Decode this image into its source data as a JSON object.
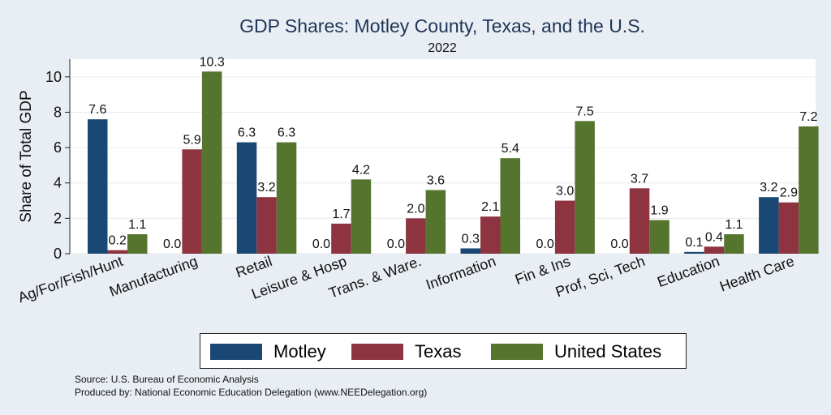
{
  "title": "GDP Shares: Motley County, Texas, and the U.S.",
  "subtitle": "2022",
  "source_line1": "Source: U.S. Bureau of Economic Analysis",
  "source_line2": "Produced by: National Economic Education Delegation (www.NEEDelegation.org)",
  "chart_data": {
    "type": "bar",
    "ylabel": "Share of Total GDP",
    "xlabel": "",
    "ylim": [
      0,
      11
    ],
    "yticks": [
      0,
      2,
      4,
      6,
      8,
      10
    ],
    "grid": true,
    "legend_position": "bottom",
    "categories": [
      "Ag/For/Fish/Hunt",
      "Manufacturing",
      "Retail",
      "Leisure & Hosp",
      "Trans. & Ware.",
      "Information",
      "Fin & Ins",
      "Prof, Sci, Tech",
      "Education",
      "Health Care"
    ],
    "series": [
      {
        "name": "Motley",
        "color": "#1a4875",
        "values": [
          7.6,
          0.0,
          6.3,
          0.0,
          0.0,
          0.3,
          0.0,
          0.0,
          0.1,
          3.2
        ]
      },
      {
        "name": "Texas",
        "color": "#8e3440",
        "values": [
          0.2,
          5.9,
          3.2,
          1.7,
          2.0,
          2.1,
          3.0,
          3.7,
          0.4,
          2.9
        ]
      },
      {
        "name": "United States",
        "color": "#55752f",
        "values": [
          1.1,
          10.3,
          6.3,
          4.2,
          3.6,
          5.4,
          7.5,
          1.9,
          1.1,
          7.2
        ]
      }
    ]
  }
}
